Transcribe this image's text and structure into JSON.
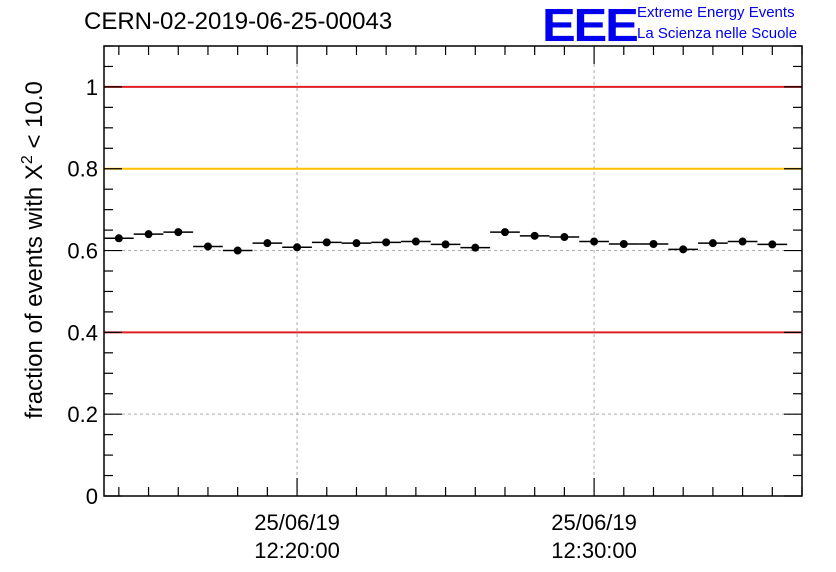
{
  "header": {
    "run_title": "CERN-02-2019-06-25-00043",
    "logo_text": "EEE",
    "brand_line1": "Extreme Energy Events",
    "brand_line2": "La Scienza nelle Scuole"
  },
  "chart_data": {
    "type": "scatter",
    "title": "CERN-02-2019-06-25-00043",
    "ylabel_main": "fraction of events with X",
    "ylabel_sup": "2",
    "ylabel_tail": " < 10.0",
    "xlabel": "",
    "ylim": [
      0,
      1.1
    ],
    "y_ticks": [
      "0",
      "0.2",
      "0.4",
      "0.6",
      "0.8",
      "1"
    ],
    "x_ticks": [
      {
        "date": "25/06/19",
        "time": "12:20:00"
      },
      {
        "date": "25/06/19",
        "time": "12:30:00"
      }
    ],
    "grid": true,
    "reference_lines": [
      {
        "y": 1.0,
        "color": "#e02020"
      },
      {
        "y": 0.8,
        "color": "#ffc000"
      },
      {
        "y": 0.4,
        "color": "#e02020"
      }
    ],
    "series": [
      {
        "x": [
          "12:14:00",
          "12:15:00",
          "12:16:00",
          "12:17:00",
          "12:18:00",
          "12:19:00",
          "12:20:00",
          "12:21:00",
          "12:22:00",
          "12:23:00",
          "12:24:00",
          "12:25:00",
          "12:26:00",
          "12:27:00",
          "12:28:00",
          "12:29:00",
          "12:30:00",
          "12:31:00",
          "12:32:00",
          "12:33:00",
          "12:34:00",
          "12:35:00",
          "12:36:00"
        ],
        "y": [
          0.63,
          0.64,
          0.645,
          0.61,
          0.6,
          0.618,
          0.608,
          0.62,
          0.618,
          0.62,
          0.622,
          0.615,
          0.607,
          0.645,
          0.636,
          0.633,
          0.622,
          0.616,
          0.616,
          0.603,
          0.618,
          0.622,
          0.615
        ],
        "x_half_width_min": 0.5,
        "y_err": 0.006
      }
    ]
  }
}
